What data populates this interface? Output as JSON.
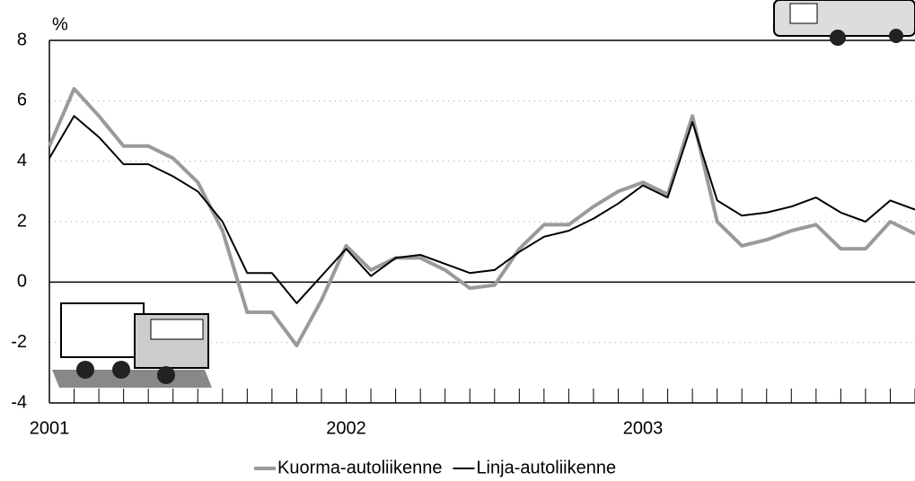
{
  "chart_data": {
    "type": "line",
    "y_label": "%",
    "categories": [
      "2001",
      null,
      null,
      null,
      null,
      null,
      null,
      null,
      null,
      null,
      null,
      null,
      "2002",
      null,
      null,
      null,
      null,
      null,
      null,
      null,
      null,
      null,
      null,
      null,
      "2003",
      null,
      null,
      null,
      null,
      null,
      null,
      null,
      null,
      null,
      null,
      null
    ],
    "series": [
      {
        "name": "Kuorma-autoliikenne",
        "color": "#9a9a9a",
        "values": [
          4.5,
          6.4,
          5.5,
          4.5,
          4.5,
          4.1,
          3.3,
          1.7,
          -1.0,
          -1.0,
          -2.1,
          -0.6,
          1.2,
          0.4,
          0.8,
          0.8,
          0.4,
          -0.2,
          -0.1,
          1.1,
          1.9,
          1.9,
          2.5,
          3.0,
          3.3,
          2.9,
          5.5,
          2.0,
          1.2,
          1.4,
          1.7,
          1.9,
          1.1,
          1.1,
          2.0,
          1.6
        ]
      },
      {
        "name": "Linja-autoliikenne",
        "color": "#000000",
        "values": [
          4.1,
          5.5,
          4.8,
          3.9,
          3.9,
          3.5,
          3.0,
          2.0,
          0.3,
          0.3,
          -0.7,
          0.2,
          1.1,
          0.2,
          0.8,
          0.9,
          0.6,
          0.3,
          0.4,
          1.0,
          1.5,
          1.7,
          2.1,
          2.6,
          3.2,
          2.8,
          5.3,
          2.7,
          2.2,
          2.3,
          2.5,
          2.8,
          2.3,
          2.0,
          2.7,
          2.4
        ]
      }
    ],
    "ylim": [
      -4,
      8
    ],
    "yticks": [
      -4,
      -2,
      0,
      2,
      4,
      6,
      8
    ],
    "grid": true
  }
}
